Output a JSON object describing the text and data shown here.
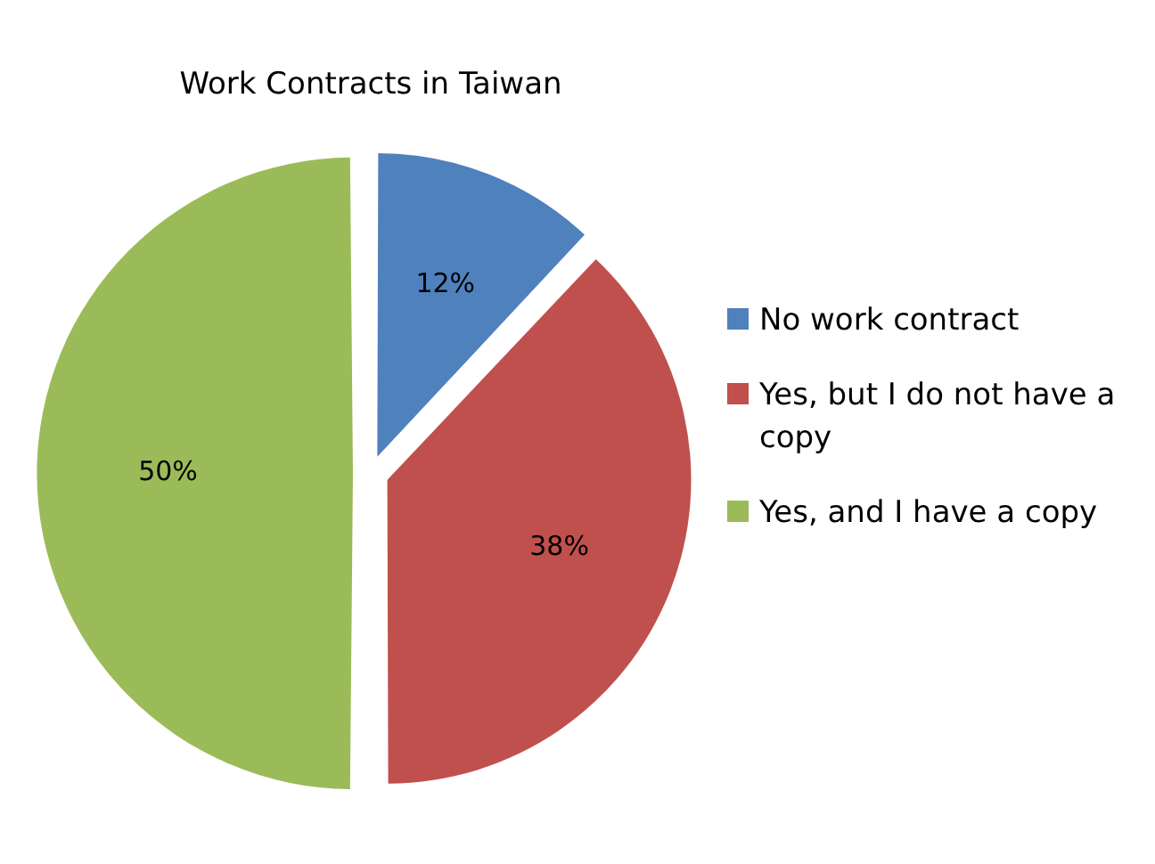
{
  "chart_data": {
    "type": "pie",
    "title": "Work Contracts in Taiwan",
    "categories": [
      "No work contract",
      "Yes, but I do not have a copy",
      "Yes, and I have a copy"
    ],
    "values": [
      12,
      38,
      50
    ],
    "colors": [
      "#4f81bd",
      "#c0504d",
      "#9bbb59"
    ],
    "value_labels": [
      "12%",
      "38%",
      "50%"
    ],
    "legend": "right"
  }
}
